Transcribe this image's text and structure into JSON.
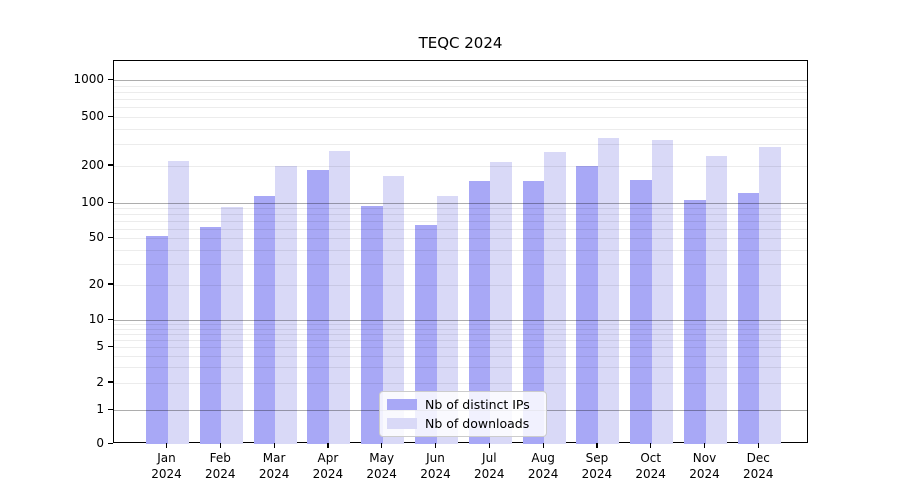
{
  "title": "TEQC 2024",
  "colors": {
    "ips_bar": "#a8a8f6",
    "downloads_bar": "#d9d9f7",
    "axis": "#000000",
    "major_grid": "#b3b3b3",
    "minor_grid": "#ebebeb"
  },
  "chart_data": {
    "type": "bar",
    "title": "TEQC 2024",
    "categories": [
      "Jan",
      "Feb",
      "Mar",
      "Apr",
      "May",
      "Jun",
      "Jul",
      "Aug",
      "Sep",
      "Oct",
      "Nov",
      "Dec"
    ],
    "year": "2024",
    "series": [
      {
        "name": "Nb of distinct IPs",
        "color": "#a8a8f6",
        "values": [
          52,
          62,
          115,
          185,
          95,
          65,
          150,
          150,
          200,
          155,
          105,
          120
        ]
      },
      {
        "name": "Nb of downloads",
        "color": "#d9d9f7",
        "values": [
          220,
          92,
          200,
          265,
          165,
          115,
          215,
          260,
          340,
          325,
          240,
          285
        ]
      }
    ],
    "xlabel": "",
    "ylabel": "",
    "yscale": "symlog",
    "y_ticks": [
      1000,
      500,
      200,
      100,
      50,
      20,
      10,
      5,
      2,
      1,
      0
    ],
    "ylim": [
      0,
      1400
    ],
    "grid": true,
    "legend_position": "lower center"
  }
}
